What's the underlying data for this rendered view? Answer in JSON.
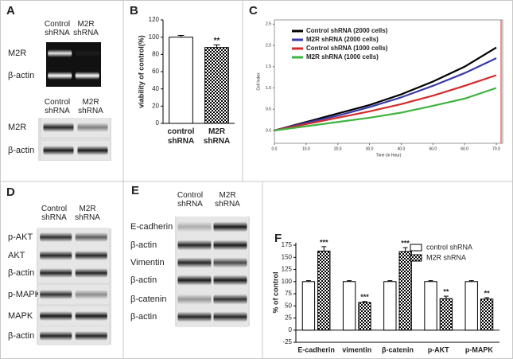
{
  "letters": [
    "A",
    "B",
    "C",
    "D",
    "E",
    "F"
  ],
  "blots": [
    {
      "headers": [
        "Control shRNA",
        "M2R shRNA"
      ],
      "rows": [
        "M2R",
        "β-actin"
      ]
    },
    {
      "headers": [
        "Control shRNA",
        "M2R shRNA"
      ],
      "rows": [
        "M2R",
        "β-actin"
      ]
    },
    {
      "headers": [
        "Control shRNA",
        "M2R shRNA"
      ],
      "rows": [
        "p-AKT",
        "AKT",
        "β-actin",
        "p-MAPK",
        "MAPK",
        "β-actin"
      ]
    },
    {
      "headers": [
        "Control shRNA",
        "M2R shRNA"
      ],
      "rows": [
        "E-cadherin",
        "β-actin",
        "Vimentin",
        "β-actin",
        "β-catenin",
        "β-actin"
      ]
    }
  ],
  "chart_data": [
    {
      "type": "bar",
      "y_label": "viability of control(%)",
      "categories": [
        "control shRNA",
        "M2R shRNA"
      ],
      "values": [
        100,
        88
      ],
      "errors": [
        2,
        3
      ],
      "annotations": [
        null,
        "**"
      ],
      "colors": [
        "#ffffff",
        "#000000"
      ],
      "fills": [
        "solid",
        "checker"
      ],
      "ylim": [
        0,
        120
      ],
      "yticks": [
        0,
        20,
        40,
        60,
        80,
        100,
        120
      ]
    },
    {
      "type": "line",
      "x_label": "Time (in Hour)",
      "y_label": "Cell Index",
      "x": [
        0,
        10,
        20,
        30,
        40,
        50,
        60,
        70
      ],
      "series": [
        {
          "name": "Control shRNA (2000 cells)",
          "color": "#000000",
          "values": [
            0,
            0.2,
            0.4,
            0.6,
            0.85,
            1.15,
            1.5,
            1.95
          ]
        },
        {
          "name": "M2R shRNA (2000 cells)",
          "color": "#3a3aa8",
          "values": [
            0,
            0.18,
            0.35,
            0.55,
            0.78,
            1.05,
            1.35,
            1.7
          ]
        },
        {
          "name": "Control shRNA (1000 cells)",
          "color": "#d42a2a",
          "values": [
            0,
            0.15,
            0.3,
            0.45,
            0.62,
            0.82,
            1.05,
            1.3
          ]
        },
        {
          "name": "M2R shRNA (1000 cells)",
          "color": "#3fb33f",
          "values": [
            0,
            0.1,
            0.2,
            0.3,
            0.42,
            0.58,
            0.75,
            1.0
          ]
        }
      ],
      "xlim": [
        0,
        72
      ],
      "xticks": [
        {
          "value": 0,
          "label": "0.0"
        },
        {
          "value": 10,
          "label": "10.0"
        },
        {
          "value": 20,
          "label": "20.0"
        },
        {
          "value": 30,
          "label": "30.0"
        },
        {
          "value": 40,
          "label": "40.0"
        },
        {
          "value": 50,
          "label": "50.0"
        },
        {
          "value": 60,
          "label": "60.0"
        },
        {
          "value": 70,
          "label": "70.0"
        }
      ],
      "ylim": [
        -0.3,
        2.6
      ],
      "yticks": [
        {
          "value": 0,
          "label": "0.0"
        },
        {
          "value": 0.5,
          "label": "0.5"
        },
        {
          "value": 1,
          "label": "1.0"
        },
        {
          "value": 1.5,
          "label": "1.5"
        },
        {
          "value": 2,
          "label": "2.0"
        },
        {
          "value": 2.5,
          "label": "2.5"
        }
      ],
      "legend": "upper left"
    },
    {
      "type": "grouped_bar",
      "y_label": "% of control",
      "categories": [
        "E-cadherin",
        "vimentin",
        "β-catenin",
        "p-AKT",
        "p-MAPK"
      ],
      "series": [
        {
          "name": "control shRNA",
          "color": "#ffffff",
          "fill": "solid",
          "values": [
            100,
            100,
            100,
            100,
            100
          ],
          "errors": [
            2,
            2,
            2,
            2,
            2
          ]
        },
        {
          "name": "M2R shRNA",
          "color": "#000000",
          "fill": "checker",
          "values": [
            163,
            57,
            162,
            65,
            64
          ],
          "errors": [
            9,
            2,
            8,
            5,
            3
          ],
          "annotations": [
            "***",
            "***",
            "***",
            "**",
            "**"
          ]
        }
      ],
      "ylim": [
        -25,
        180
      ],
      "yticks": [
        -25,
        0,
        25,
        50,
        75,
        100,
        125,
        150,
        175
      ],
      "legend": "upper right"
    }
  ]
}
